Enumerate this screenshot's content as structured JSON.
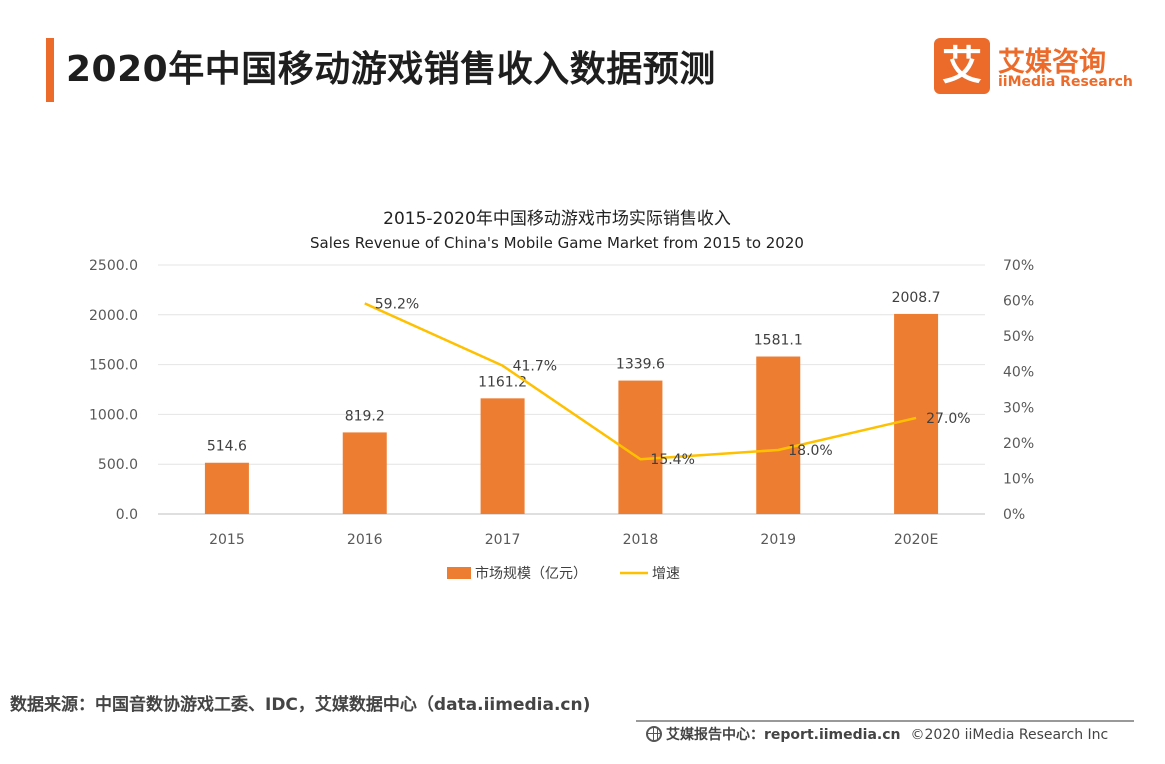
{
  "header": {
    "title": "2020年中国移动游戏销售收入数据预测",
    "accent_color": "#ec6b2a"
  },
  "logo": {
    "mark": "艾",
    "cn": "艾媒咨询",
    "en": "iiMedia Research"
  },
  "chart_data": {
    "type": "bar",
    "title": "2015-2020年中国移动游戏市场实际销售收入",
    "subtitle": "Sales Revenue of China's Mobile Game Market from 2015 to 2020",
    "categories": [
      "2015",
      "2016",
      "2017",
      "2018",
      "2019",
      "2020E"
    ],
    "series": [
      {
        "name": "市场规模（亿元）",
        "type": "bar",
        "axis": "left",
        "color": "#ed7d31",
        "values": [
          514.6,
          819.2,
          1161.2,
          1339.6,
          1581.1,
          2008.7
        ],
        "labels": [
          "514.6",
          "819.2",
          "1161.2",
          "1339.6",
          "1581.1",
          "2008.7"
        ]
      },
      {
        "name": "增速",
        "type": "line",
        "axis": "right",
        "color": "#ffc000",
        "values": [
          null,
          59.2,
          41.7,
          15.4,
          18.0,
          27.0
        ],
        "labels": [
          "",
          "59.2%",
          "41.7%",
          "15.4%",
          "18.0%",
          "27.0%"
        ]
      }
    ],
    "y_left": {
      "range": [
        0,
        2500
      ],
      "ticks": [
        "0.0",
        "500.0",
        "1000.0",
        "1500.0",
        "2000.0",
        "2500.0"
      ]
    },
    "y_right": {
      "range": [
        0,
        70
      ],
      "ticks": [
        "0%",
        "10%",
        "20%",
        "30%",
        "40%",
        "50%",
        "60%",
        "70%"
      ]
    },
    "grid": true,
    "legend_position": "bottom"
  },
  "source": "数据来源：中国音数协游戏工委、IDC，艾媒数据中心（data.iimedia.cn)",
  "footer": {
    "text": "艾媒报告中心：report.iimedia.cn",
    "copyright": "©2020  iiMedia Research  Inc"
  }
}
